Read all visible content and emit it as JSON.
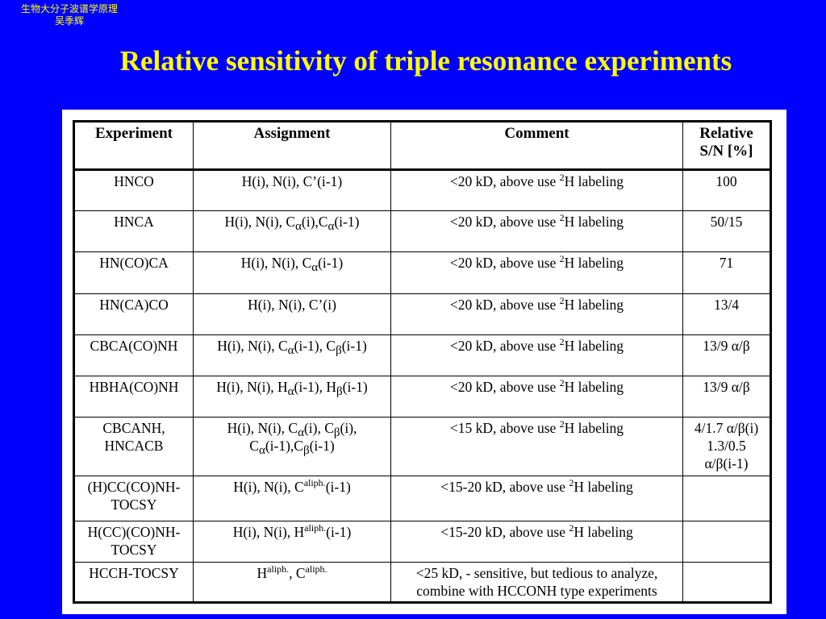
{
  "corner": {
    "line1": "生物大分子波谱学原理",
    "line2": "吴季辉"
  },
  "title": "Relative sensitivity of triple resonance experiments",
  "table": {
    "headers": {
      "experiment": "Experiment",
      "assignment": "Assignment",
      "comment": "Comment",
      "relative_line1": "Relative",
      "relative_line2": "S/N [%]"
    },
    "rows": [
      {
        "experiment": [
          "HNCO"
        ],
        "assignment": [
          [
            "H(i), N(i), C’(i-1)"
          ]
        ],
        "comment": [
          [
            "<20 kD, above use ",
            "2",
            "H labeling"
          ]
        ],
        "relative": [
          "100"
        ]
      },
      {
        "experiment": [
          "HNCA"
        ],
        "assignment": [
          [
            "H(i), N(i), C",
            "α",
            "(i),C",
            "α",
            "(i-1)"
          ]
        ],
        "comment": [
          [
            "<20 kD, above use ",
            "2",
            "H labeling"
          ]
        ],
        "relative": [
          "50/15"
        ]
      },
      {
        "experiment": [
          "HN(CO)CA"
        ],
        "assignment": [
          [
            "H(i), N(i), C",
            "α",
            "(i-1)"
          ]
        ],
        "comment": [
          [
            "<20 kD, above use ",
            "2",
            "H labeling"
          ]
        ],
        "relative": [
          "71"
        ]
      },
      {
        "experiment": [
          "HN(CA)CO"
        ],
        "assignment": [
          [
            "H(i), N(i), C’(i)"
          ]
        ],
        "comment": [
          [
            "<20 kD, above use ",
            "2",
            "H labeling"
          ]
        ],
        "relative": [
          "13/4"
        ]
      },
      {
        "experiment": [
          "CBCA(CO)NH"
        ],
        "assignment": [
          [
            "H(i), N(i), C",
            "α",
            "(i-1), C",
            "β",
            "(i-1)"
          ]
        ],
        "comment": [
          [
            "<20 kD, above use ",
            "2",
            "H labeling"
          ]
        ],
        "relative": [
          "13/9 α/β"
        ]
      },
      {
        "experiment": [
          "HBHA(CO)NH"
        ],
        "assignment": [
          [
            "H(i), N(i), H",
            "α",
            "(i-1), H",
            "β",
            "(i-1)"
          ]
        ],
        "comment": [
          [
            "<20 kD, above use ",
            "2",
            "H labeling"
          ]
        ],
        "relative": [
          "13/9 α/β"
        ]
      },
      {
        "experiment": [
          "CBCANH,",
          "HNCACB"
        ],
        "assignment": [
          [
            "H(i), N(i), C",
            "α",
            "(i), C",
            "β",
            "(i),"
          ],
          [
            "C",
            "α",
            "(i-1),C",
            "β",
            "(i-1)"
          ]
        ],
        "comment": [
          [
            "<15 kD, above use ",
            "2",
            "H labeling"
          ]
        ],
        "relative": [
          "4/1.7 α/β(i)",
          "1.3/0.5",
          "α/β(i-1)"
        ]
      },
      {
        "experiment": [
          "(H)CC(CO)NH-",
          "TOCSY"
        ],
        "assignment": [
          [
            "H(i), N(i), C",
            "aliph.",
            "(i-1)"
          ]
        ],
        "comment": [
          [
            "<15-20 kD, above use ",
            "2",
            "H labeling"
          ]
        ],
        "relative": [
          ""
        ]
      },
      {
        "experiment": [
          "H(CC)(CO)NH-",
          "TOCSY"
        ],
        "assignment": [
          [
            "H(i), N(i), H",
            "aliph.",
            "(i-1)"
          ]
        ],
        "comment": [
          [
            "<15-20 kD, above use ",
            "2",
            "H labeling"
          ]
        ],
        "relative": [
          ""
        ]
      },
      {
        "experiment": [
          "HCCH-TOCSY"
        ],
        "assignment": [
          [
            "H",
            "aliph.",
            ", C",
            "aliph."
          ]
        ],
        "comment": [
          [
            "<25 kD, - sensitive, but tedious to analyze,"
          ],
          [
            "combine with HCCONH type experiments"
          ]
        ],
        "relative": [
          ""
        ]
      }
    ]
  }
}
